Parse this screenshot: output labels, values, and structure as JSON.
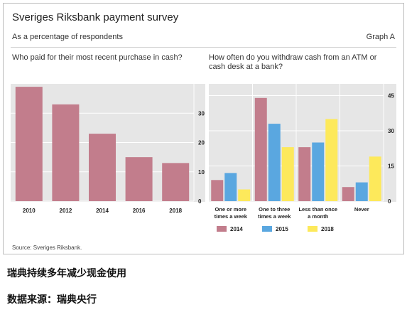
{
  "figure": {
    "title": "Sveriges Riksbank payment survey",
    "subtitle": "As a percentage of respondents",
    "graph_label": "Graph A",
    "source": "Source: Sveriges Riksbank."
  },
  "captions": {
    "line1": "瑞典持续多年减少现金使用",
    "line2": "数据来源：瑞典央行"
  },
  "colors": {
    "panel_bg": "#e6e6e6",
    "series_2014": "#c27d8c",
    "series_2015": "#5aa7e0",
    "series_2018": "#fde95b"
  },
  "chart_data": [
    {
      "type": "bar",
      "title": "Who paid for their most recent purchase in cash?",
      "categories": [
        "2010",
        "2012",
        "2014",
        "2016",
        "2018"
      ],
      "values": [
        39,
        33,
        23,
        15,
        13
      ],
      "yticks": [
        "0",
        "10",
        "20",
        "30"
      ],
      "ylim": [
        0,
        40
      ],
      "grid": true,
      "y_axis_side": "right"
    },
    {
      "type": "bar",
      "title": "How often do you withdraw cash from an ATM or cash desk at a bank?",
      "categories": [
        [
          "One or more",
          "times a week"
        ],
        [
          "One to three",
          "times a week"
        ],
        [
          "Less than once",
          "a month"
        ],
        [
          "Never"
        ]
      ],
      "series": [
        {
          "name": "2014",
          "values": [
            9,
            44,
            23,
            6
          ]
        },
        {
          "name": "2015",
          "values": [
            12,
            33,
            25,
            8
          ]
        },
        {
          "name": "2018",
          "values": [
            5,
            23,
            35,
            19
          ]
        }
      ],
      "yticks": [
        "0",
        "15",
        "30",
        "45"
      ],
      "ylim": [
        0,
        50
      ],
      "grid": true,
      "y_axis_side": "right",
      "legend_position": "bottom"
    }
  ]
}
